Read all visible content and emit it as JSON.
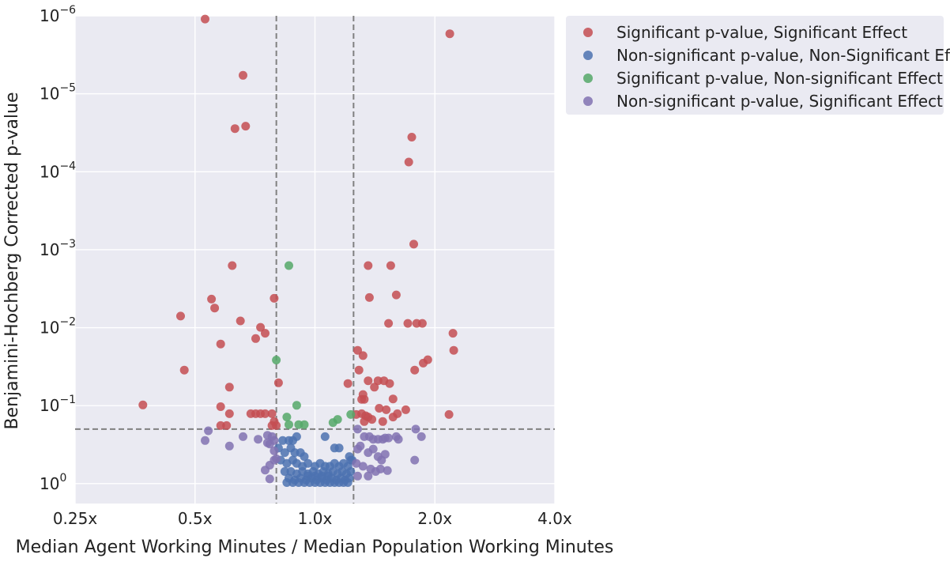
{
  "chart_data": {
    "type": "scatter",
    "title": "",
    "xlabel": "Median Agent Working Minutes / Median Population Working Minutes",
    "ylabel": "Benjamini-Hochberg Corrected p-value",
    "xscale": "log2",
    "yscale": "log10-reversed",
    "xlim": [
      0.25,
      4.0
    ],
    "ylim": [
      1.8,
      1e-06
    ],
    "x_ticks": [
      0.25,
      0.5,
      1.0,
      2.0,
      4.0
    ],
    "x_tick_labels": [
      "0.25x",
      "0.5x",
      "1.0x",
      "2.0x",
      "4.0x"
    ],
    "y_ticks": [
      1,
      0.1,
      0.01,
      0.001,
      0.0001,
      1e-05,
      1e-06
    ],
    "y_tick_labels": [
      {
        "base": "10",
        "exp": "0"
      },
      {
        "base": "10",
        "exp": "−1"
      },
      {
        "base": "10",
        "exp": "−2"
      },
      {
        "base": "10",
        "exp": "−3"
      },
      {
        "base": "10",
        "exp": "−4"
      },
      {
        "base": "10",
        "exp": "−5"
      },
      {
        "base": "10",
        "exp": "−6"
      }
    ],
    "reference_lines": {
      "vertical": [
        0.8,
        1.25
      ],
      "horizontal": [
        0.2
      ]
    },
    "grid": true,
    "background": "#eaeaf2",
    "legend_position": "outside-top-right",
    "series": [
      {
        "name": "Significant p-value, Significant Effect",
        "color": "#c44e52",
        "points": [
          [
            0.53,
            1.1e-06
          ],
          [
            2.18,
            1.7e-06
          ],
          [
            0.66,
            5.8e-06
          ],
          [
            0.63,
            2.8e-05
          ],
          [
            0.67,
            2.6e-05
          ],
          [
            1.75,
            3.6e-05
          ],
          [
            1.72,
            7.5e-05
          ],
          [
            1.77,
            0.00085
          ],
          [
            0.62,
            0.0016
          ],
          [
            1.36,
            0.0016
          ],
          [
            1.55,
            0.0016
          ],
          [
            0.79,
            0.0042
          ],
          [
            0.55,
            0.0043
          ],
          [
            1.37,
            0.0041
          ],
          [
            1.6,
            0.0038
          ],
          [
            0.56,
            0.0056
          ],
          [
            0.46,
            0.0071
          ],
          [
            0.65,
            0.0082
          ],
          [
            1.53,
            0.0088
          ],
          [
            1.71,
            0.0088
          ],
          [
            1.8,
            0.0088
          ],
          [
            1.86,
            0.0088
          ],
          [
            0.73,
            0.0099
          ],
          [
            0.75,
            0.0118
          ],
          [
            0.71,
            0.0138
          ],
          [
            2.22,
            0.0118
          ],
          [
            0.58,
            0.0162
          ],
          [
            1.28,
            0.0195
          ],
          [
            2.23,
            0.0195
          ],
          [
            1.32,
            0.0228
          ],
          [
            1.92,
            0.0258
          ],
          [
            1.87,
            0.0285
          ],
          [
            0.47,
            0.035
          ],
          [
            1.29,
            0.035
          ],
          [
            1.78,
            0.035
          ],
          [
            0.61,
            0.058
          ],
          [
            1.36,
            0.048
          ],
          [
            1.44,
            0.048
          ],
          [
            1.49,
            0.048
          ],
          [
            1.54,
            0.052
          ],
          [
            0.81,
            0.051
          ],
          [
            1.21,
            0.052
          ],
          [
            1.32,
            0.072
          ],
          [
            1.41,
            0.058
          ],
          [
            0.37,
            0.098
          ],
          [
            1.31,
            0.083
          ],
          [
            1.33,
            0.083
          ],
          [
            1.57,
            0.082
          ],
          [
            0.58,
            0.103
          ],
          [
            1.45,
            0.108
          ],
          [
            1.51,
            0.113
          ],
          [
            1.69,
            0.113
          ],
          [
            0.61,
            0.127
          ],
          [
            0.69,
            0.127
          ],
          [
            0.71,
            0.127
          ],
          [
            0.73,
            0.127
          ],
          [
            0.75,
            0.127
          ],
          [
            0.78,
            0.127
          ],
          [
            0.79,
            0.16
          ],
          [
            0.8,
            0.18
          ],
          [
            1.31,
            0.127
          ],
          [
            1.34,
            0.135
          ],
          [
            1.36,
            0.14
          ],
          [
            1.57,
            0.14
          ],
          [
            1.61,
            0.127
          ],
          [
            2.17,
            0.13
          ],
          [
            0.58,
            0.18
          ],
          [
            0.6,
            0.18
          ],
          [
            0.78,
            0.18
          ],
          [
            1.39,
            0.15
          ],
          [
            1.48,
            0.16
          ],
          [
            1.27,
            0.13
          ],
          [
            1.33,
            0.16
          ]
        ]
      },
      {
        "name": "Non-significant p-value, Non-Significant Effect",
        "color": "#4c72b0",
        "points": [
          [
            0.83,
            0.28
          ],
          [
            0.86,
            0.28
          ],
          [
            0.88,
            0.28
          ],
          [
            0.9,
            0.25
          ],
          [
            1.06,
            0.25
          ],
          [
            0.81,
            0.35
          ],
          [
            0.84,
            0.4
          ],
          [
            0.87,
            0.35
          ],
          [
            0.89,
            0.4
          ],
          [
            0.92,
            0.4
          ],
          [
            0.94,
            0.45
          ],
          [
            1.12,
            0.35
          ],
          [
            1.15,
            0.35
          ],
          [
            1.22,
            0.45
          ],
          [
            1.23,
            0.5
          ],
          [
            0.82,
            0.5
          ],
          [
            0.85,
            0.55
          ],
          [
            0.88,
            0.5
          ],
          [
            0.9,
            0.55
          ],
          [
            0.93,
            0.6
          ],
          [
            0.96,
            0.55
          ],
          [
            1.0,
            0.6
          ],
          [
            1.03,
            0.55
          ],
          [
            1.06,
            0.6
          ],
          [
            1.09,
            0.6
          ],
          [
            1.12,
            0.55
          ],
          [
            1.15,
            0.6
          ],
          [
            1.18,
            0.55
          ],
          [
            1.21,
            0.6
          ],
          [
            1.24,
            0.5
          ],
          [
            0.84,
            0.7
          ],
          [
            0.87,
            0.7
          ],
          [
            0.9,
            0.75
          ],
          [
            0.93,
            0.7
          ],
          [
            0.96,
            0.75
          ],
          [
            0.99,
            0.7
          ],
          [
            1.02,
            0.75
          ],
          [
            1.05,
            0.7
          ],
          [
            1.08,
            0.75
          ],
          [
            1.11,
            0.7
          ],
          [
            1.14,
            0.75
          ],
          [
            1.17,
            0.7
          ],
          [
            1.2,
            0.75
          ],
          [
            1.23,
            0.7
          ],
          [
            0.86,
            0.85
          ],
          [
            0.89,
            0.9
          ],
          [
            0.92,
            0.85
          ],
          [
            0.95,
            0.9
          ],
          [
            0.98,
            0.85
          ],
          [
            1.01,
            0.9
          ],
          [
            1.04,
            0.85
          ],
          [
            1.07,
            0.9
          ],
          [
            1.1,
            0.85
          ],
          [
            1.13,
            0.9
          ],
          [
            1.16,
            0.85
          ],
          [
            1.19,
            0.9
          ],
          [
            1.22,
            0.85
          ],
          [
            0.85,
            0.97
          ],
          [
            0.88,
            0.97
          ],
          [
            0.91,
            0.97
          ],
          [
            0.94,
            0.97
          ],
          [
            0.97,
            0.97
          ],
          [
            1.0,
            0.97
          ],
          [
            1.03,
            0.97
          ],
          [
            1.06,
            0.97
          ],
          [
            1.09,
            0.97
          ],
          [
            1.12,
            0.97
          ],
          [
            1.15,
            0.97
          ],
          [
            1.18,
            0.97
          ],
          [
            1.21,
            0.97
          ],
          [
            0.96,
            0.8
          ],
          [
            1.0,
            0.8
          ],
          [
            1.04,
            0.8
          ],
          [
            1.08,
            0.8
          ]
        ]
      },
      {
        "name": "Significant p-value, Non-significant Effect",
        "color": "#55a868",
        "points": [
          [
            0.86,
            0.0016
          ],
          [
            0.8,
            0.026
          ],
          [
            0.9,
            0.099
          ],
          [
            0.85,
            0.14
          ],
          [
            0.86,
            0.175
          ],
          [
            0.91,
            0.175
          ],
          [
            0.94,
            0.175
          ],
          [
            1.11,
            0.165
          ],
          [
            1.14,
            0.15
          ],
          [
            1.23,
            0.13
          ]
        ]
      },
      {
        "name": "Non-significant p-value, Significant Effect",
        "color": "#8172b2",
        "points": [
          [
            0.54,
            0.21
          ],
          [
            0.53,
            0.28
          ],
          [
            0.66,
            0.25
          ],
          [
            0.61,
            0.33
          ],
          [
            0.72,
            0.27
          ],
          [
            0.76,
            0.24
          ],
          [
            0.78,
            0.25
          ],
          [
            0.79,
            0.28
          ],
          [
            0.77,
            0.31
          ],
          [
            0.76,
            0.3
          ],
          [
            0.79,
            0.38
          ],
          [
            0.8,
            0.48
          ],
          [
            0.79,
            0.5
          ],
          [
            0.77,
            0.58
          ],
          [
            0.75,
            0.67
          ],
          [
            0.77,
            0.87
          ],
          [
            1.28,
            0.2
          ],
          [
            1.33,
            0.25
          ],
          [
            1.37,
            0.25
          ],
          [
            1.4,
            0.27
          ],
          [
            1.44,
            0.27
          ],
          [
            1.48,
            0.27
          ],
          [
            1.5,
            0.26
          ],
          [
            1.53,
            0.26
          ],
          [
            1.6,
            0.25
          ],
          [
            1.62,
            0.27
          ],
          [
            1.79,
            0.2
          ],
          [
            1.85,
            0.25
          ],
          [
            1.28,
            0.36
          ],
          [
            1.3,
            0.33
          ],
          [
            1.36,
            0.4
          ],
          [
            1.4,
            0.36
          ],
          [
            1.44,
            0.45
          ],
          [
            1.47,
            0.5
          ],
          [
            1.5,
            0.42
          ],
          [
            1.78,
            0.5
          ],
          [
            1.27,
            0.55
          ],
          [
            1.32,
            0.6
          ],
          [
            1.38,
            0.65
          ],
          [
            1.42,
            0.7
          ],
          [
            1.46,
            0.65
          ],
          [
            1.52,
            0.68
          ],
          [
            1.36,
            0.8
          ],
          [
            1.28,
            0.8
          ]
        ]
      }
    ]
  }
}
